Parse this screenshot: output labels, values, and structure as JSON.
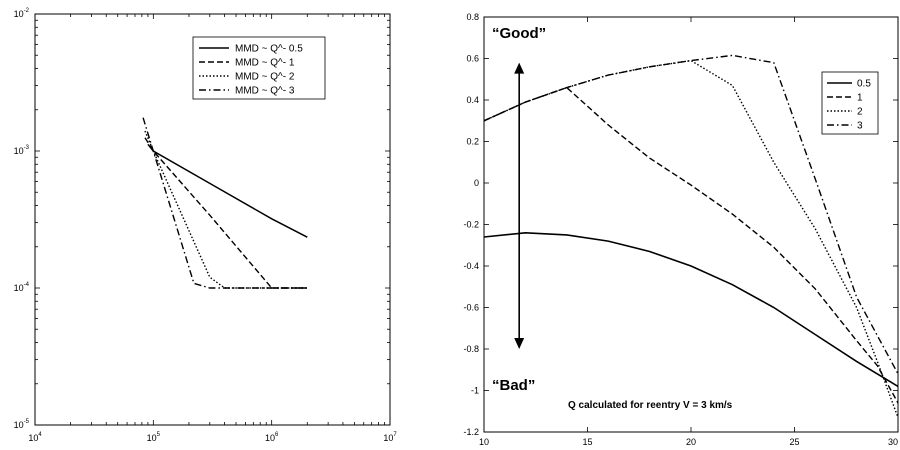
{
  "chart_data": [
    {
      "type": "line",
      "title": "",
      "xlabel": "",
      "ylabel": "",
      "x_scale": "log",
      "y_scale": "log",
      "xlim": [
        10000,
        10000000
      ],
      "ylim": [
        1e-05,
        0.01
      ],
      "grid": false,
      "legend_position": "top-right",
      "x_ticks": [
        {
          "base": "10",
          "exp": "4"
        },
        {
          "base": "10",
          "exp": "5"
        },
        {
          "base": "10",
          "exp": "6"
        },
        {
          "base": "10",
          "exp": "7"
        }
      ],
      "y_ticks": [
        {
          "base": "10",
          "exp": "-5"
        },
        {
          "base": "10",
          "exp": "-4"
        },
        {
          "base": "10",
          "exp": "-3"
        },
        {
          "base": "10",
          "exp": "-2"
        }
      ],
      "series": [
        {
          "name": "MMD ~ Q^- 0.5",
          "dash": "solid",
          "x": [
            90000,
            100000,
            300000,
            1000000,
            2000000
          ],
          "y": [
            0.00112,
            0.001,
            0.00058,
            0.00032,
            0.000235
          ]
        },
        {
          "name": "MMD ~ Q^- 1",
          "dash": "dashed",
          "x": [
            85000,
            100000,
            300000,
            1000000,
            2000000
          ],
          "y": [
            0.00125,
            0.001,
            0.00034,
            0.0001,
            0.0001
          ]
        },
        {
          "name": "MMD ~ Q^- 2",
          "dash": "dotted",
          "x": [
            85000,
            100000,
            300000,
            400000,
            1000000,
            2000000
          ],
          "y": [
            0.0014,
            0.001,
            0.00012,
            0.0001,
            0.0001,
            0.0001
          ]
        },
        {
          "name": "MMD ~ Q^- 3",
          "dash": "dashdot",
          "x": [
            82000,
            100000,
            220000,
            300000,
            1000000,
            2000000
          ],
          "y": [
            0.00175,
            0.001,
            0.000108,
            0.0001,
            0.0001,
            0.0001
          ]
        }
      ]
    },
    {
      "type": "line",
      "title": "",
      "xlabel": "",
      "ylabel": "",
      "xlim": [
        10,
        30
      ],
      "ylim": [
        -1.2,
        0.8
      ],
      "grid": false,
      "legend_position": "top-right",
      "x_ticks": [
        "10",
        "15",
        "20",
        "25",
        "30"
      ],
      "y_ticks": [
        "-1.2",
        "-1",
        "-0.8",
        "-0.6",
        "-0.4",
        "-0.2",
        "0",
        "0.2",
        "0.4",
        "0.6",
        "0.8"
      ],
      "series": [
        {
          "name": "0.5",
          "dash": "solid",
          "x": [
            10,
            12,
            14,
            16,
            18,
            20,
            22,
            24,
            26,
            28,
            30
          ],
          "y": [
            -0.26,
            -0.24,
            -0.25,
            -0.28,
            -0.33,
            -0.4,
            -0.49,
            -0.6,
            -0.73,
            -0.86,
            -0.98
          ]
        },
        {
          "name": "1",
          "dash": "dashed",
          "x": [
            10,
            12,
            14,
            16,
            18,
            20,
            22,
            24,
            26,
            28,
            29,
            30
          ],
          "y": [
            0.3,
            0.39,
            0.46,
            0.28,
            0.12,
            -0.01,
            -0.15,
            -0.31,
            -0.51,
            -0.76,
            -0.88,
            -1.06
          ]
        },
        {
          "name": "2",
          "dash": "dotted",
          "x": [
            10,
            12,
            14,
            16,
            18,
            20,
            22,
            24,
            26,
            28,
            29,
            30
          ],
          "y": [
            0.3,
            0.39,
            0.46,
            0.52,
            0.56,
            0.59,
            0.47,
            0.1,
            -0.22,
            -0.6,
            -0.86,
            -1.13
          ]
        },
        {
          "name": "3",
          "dash": "dashdot",
          "x": [
            10,
            12,
            14,
            16,
            18,
            20,
            22,
            24,
            26,
            28,
            30
          ],
          "y": [
            0.3,
            0.39,
            0.46,
            0.52,
            0.56,
            0.59,
            0.615,
            0.58,
            0.02,
            -0.55,
            -0.92
          ]
        }
      ],
      "annotations": {
        "good": "“Good”",
        "bad": "“Bad”",
        "note": "Q calculated for reentry V = 3 km/s"
      },
      "arrow_x": 11.7,
      "arrow_y_range": [
        0.58,
        -0.8
      ]
    }
  ]
}
